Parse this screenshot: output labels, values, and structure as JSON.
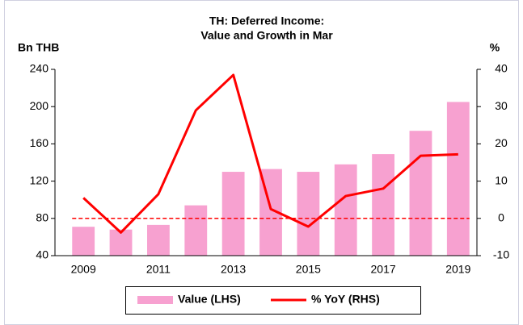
{
  "chart_data": {
    "type": "bar-line",
    "title": [
      "TH: Deferred Income:",
      "Value and Growth in Mar"
    ],
    "y_label": "Bn THB",
    "y2_label": "%",
    "categories": [
      "2009",
      null,
      "2011",
      null,
      "2013",
      null,
      "2015",
      null,
      "2017",
      null,
      "2019"
    ],
    "series": [
      {
        "name": "Value (LHS)",
        "type": "bar",
        "color": "#f7a1d0",
        "axis": "y",
        "values": [
          71,
          68,
          73,
          94,
          130,
          133,
          130,
          138,
          149,
          174,
          205
        ]
      },
      {
        "name": "% YoY (RHS)",
        "type": "line",
        "color": "#ff0000",
        "axis": "y2",
        "values": [
          5.5,
          -3.8,
          6.5,
          29,
          38.5,
          2.5,
          -2.2,
          6,
          8,
          16.8,
          17.2
        ]
      }
    ],
    "reference_line": {
      "value": 0,
      "axis": "y2",
      "color": "#ff0000",
      "dashed": true
    },
    "ylim": [
      40,
      240
    ],
    "yticks": [
      40,
      80,
      120,
      160,
      200,
      240
    ],
    "y2lim": [
      -10,
      40
    ],
    "y2ticks": [
      -10,
      0,
      10,
      20,
      30,
      40
    ],
    "grid": false
  }
}
